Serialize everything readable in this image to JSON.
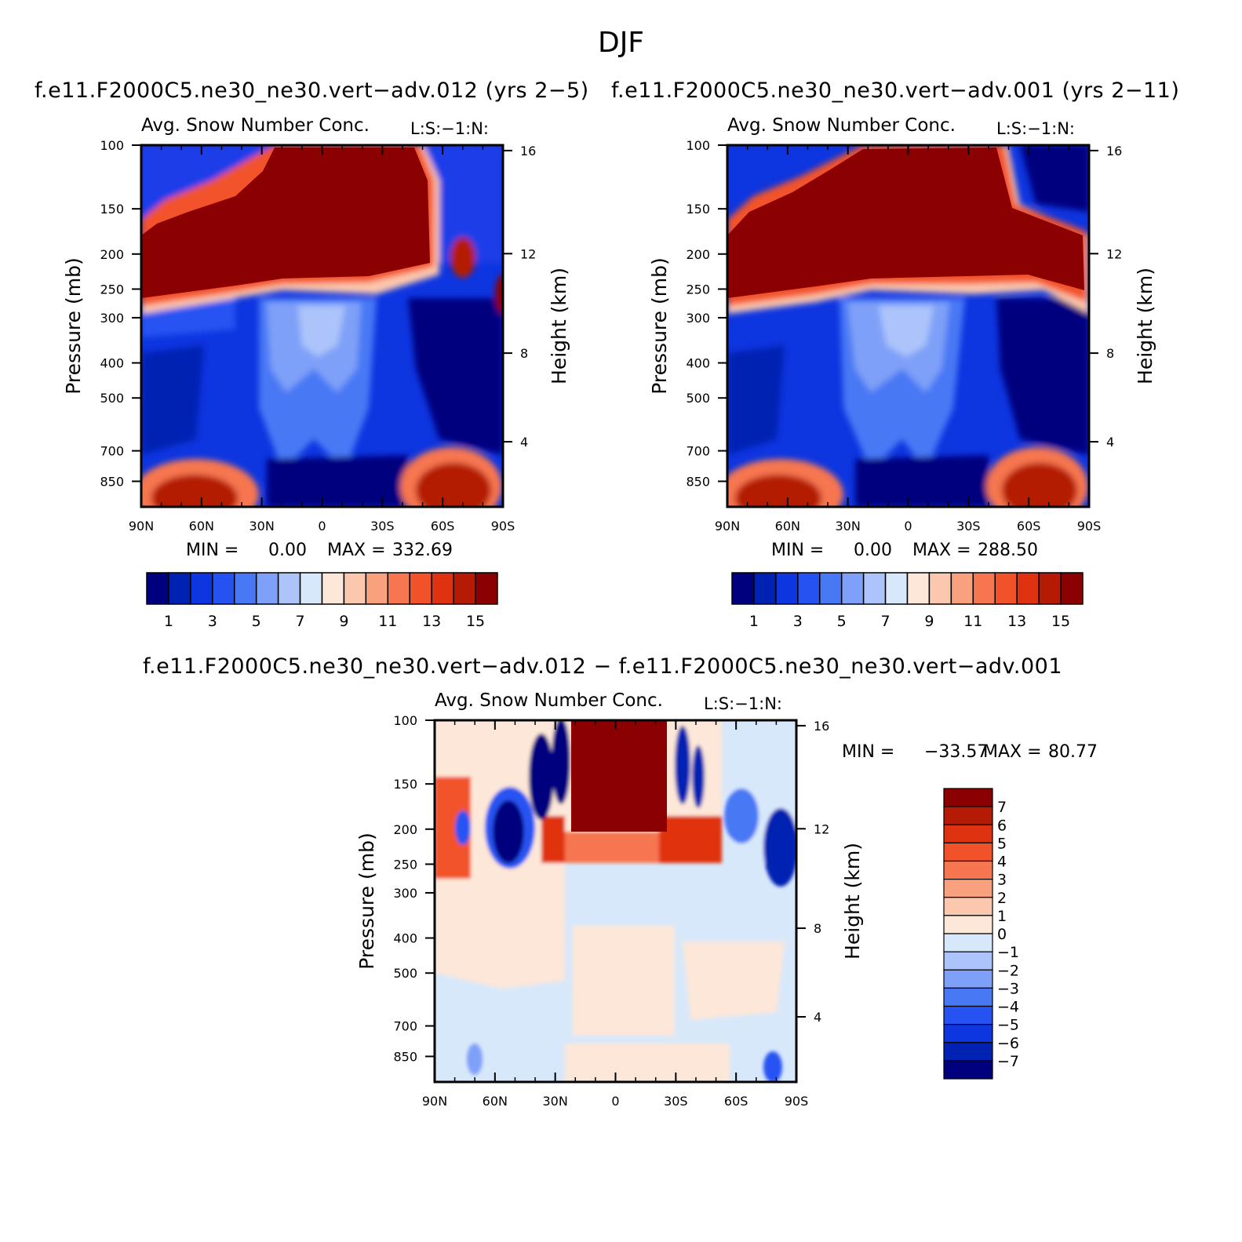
{
  "page_title": "DJF",
  "colors": {
    "raw_fills": [
      "#00007f",
      "#0022b3",
      "#0d35e0",
      "#2752f2",
      "#4978f5",
      "#7ea0f8",
      "#adc4fa",
      "#d8e8fb",
      "#fde7d8",
      "#fcc8ad",
      "#f9a07e",
      "#f6764f",
      "#f2522a",
      "#df3210",
      "#b41a04",
      "#8b0000"
    ],
    "diff_fills": [
      "#00007f",
      "#0022b3",
      "#0d35e0",
      "#2752f2",
      "#4978f5",
      "#7ea0f8",
      "#adc4fa",
      "#d8e8fb",
      "#fde7d8",
      "#fcc8ad",
      "#f9a07e",
      "#f6764f",
      "#f2522a",
      "#df3210",
      "#b41a04",
      "#8b0000"
    ]
  },
  "chart_data": [
    {
      "type": "heatmap",
      "title": "f.e11.F2000C5.ne30_ne30.vert−adv.012 (yrs 2−5)",
      "subtitle_left": "Avg. Snow Number Conc.",
      "subtitle_right": "L:S:−1:N:",
      "ylabel": "Pressure (mb)",
      "y2label": "Height (km)",
      "x_ticks": [
        "90N",
        "60N",
        "30N",
        "0",
        "30S",
        "60S",
        "90S"
      ],
      "y_ticks": [
        "100",
        "150",
        "200",
        "250",
        "300",
        "400",
        "500",
        "700",
        "850"
      ],
      "y2_ticks": [
        "16",
        "12",
        "8",
        "4"
      ],
      "stats": {
        "min_label": "MIN =",
        "min": "0.00",
        "max_label": "MAX =",
        "max": "332.69"
      },
      "colorbar": {
        "orientation": "horizontal",
        "labels": [
          "1",
          "3",
          "5",
          "7",
          "9",
          "11",
          "13",
          "15"
        ]
      }
    },
    {
      "type": "heatmap",
      "title": "f.e11.F2000C5.ne30_ne30.vert−adv.001 (yrs 2−11)",
      "subtitle_left": "Avg. Snow Number Conc.",
      "subtitle_right": "L:S:−1:N:",
      "ylabel": "Pressure (mb)",
      "y2label": "Height (km)",
      "x_ticks": [
        "90N",
        "60N",
        "30N",
        "0",
        "30S",
        "60S",
        "90S"
      ],
      "y_ticks": [
        "100",
        "150",
        "200",
        "250",
        "300",
        "400",
        "500",
        "700",
        "850"
      ],
      "y2_ticks": [
        "16",
        "12",
        "8",
        "4"
      ],
      "stats": {
        "min_label": "MIN =",
        "min": "0.00",
        "max_label": "MAX =",
        "max": "288.50"
      },
      "colorbar": {
        "orientation": "horizontal",
        "labels": [
          "1",
          "3",
          "5",
          "7",
          "9",
          "11",
          "13",
          "15"
        ]
      }
    },
    {
      "type": "heatmap",
      "title": "f.e11.F2000C5.ne30_ne30.vert−adv.012 − f.e11.F2000C5.ne30_ne30.vert−adv.001",
      "subtitle_left": "Avg. Snow Number Conc.",
      "subtitle_right": "L:S:−1:N:",
      "ylabel": "Pressure (mb)",
      "y2label": "Height (km)",
      "x_ticks": [
        "90N",
        "60N",
        "30N",
        "0",
        "30S",
        "60S",
        "90S"
      ],
      "y_ticks": [
        "100",
        "150",
        "200",
        "250",
        "300",
        "400",
        "500",
        "700",
        "850"
      ],
      "y2_ticks": [
        "16",
        "12",
        "8",
        "4"
      ],
      "stats": {
        "min_label": "MIN =",
        "min": "−33.57",
        "max_label": "MAX =",
        "max": "80.77"
      },
      "colorbar": {
        "orientation": "vertical",
        "labels": [
          "7",
          "6",
          "5",
          "4",
          "3",
          "2",
          "1",
          "0",
          "−1",
          "−2",
          "−3",
          "−4",
          "−5",
          "−6",
          "−7"
        ]
      }
    }
  ]
}
